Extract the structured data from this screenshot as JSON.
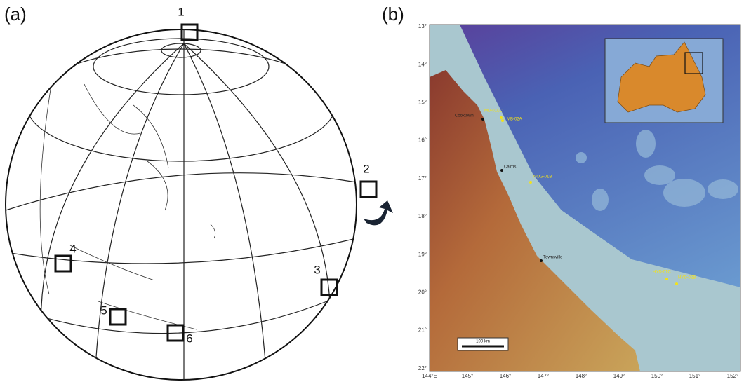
{
  "panel_a": {
    "label": "(a)",
    "sites": [
      "1",
      "2",
      "3",
      "4",
      "5",
      "6"
    ]
  },
  "panel_b": {
    "label": "(b)",
    "lat_labels": [
      "13°",
      "14°",
      "15°",
      "16°",
      "17°",
      "18°",
      "19°",
      "20°",
      "21°",
      "22°"
    ],
    "lon_labels": [
      "144°E",
      "145°",
      "146°",
      "147°",
      "148°",
      "149°",
      "150°",
      "151°",
      "152°"
    ],
    "places": [
      "Cooktown",
      "Cairns",
      "Townsville"
    ],
    "sites": [
      "MD-01LC",
      "MB-02A",
      "NOG-01B",
      "HYD-01C",
      "HYD-02B"
    ],
    "scale": "100 km"
  }
}
